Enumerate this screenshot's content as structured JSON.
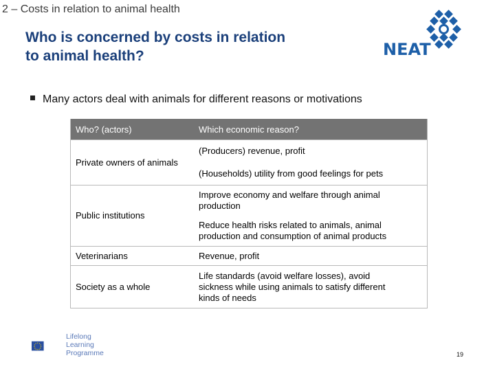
{
  "header": {
    "section_label": "2 – Costs in relation to animal health",
    "title_line1": "Who is concerned by costs in relation",
    "title_line2": "to animal health?"
  },
  "logo": {
    "text": "NEAT",
    "color": "#1d5fa8"
  },
  "bullet": "Many actors deal with animals for different reasons or motivations",
  "table": {
    "headers": [
      "Who? (actors)",
      "Which economic reason?"
    ],
    "rows": [
      {
        "actor": "Private owners of animals",
        "reasons": [
          "(Producers) revenue, profit",
          "(Households) utility from good feelings for pets"
        ]
      },
      {
        "actor": "Public institutions",
        "reasons": [
          "Improve economy and welfare through animal production",
          "Reduce health risks related to animals, animal production and consumption of animal products"
        ]
      },
      {
        "actor": "Veterinarians",
        "reasons": [
          "Revenue, profit"
        ]
      },
      {
        "actor": "Society as a whole",
        "reasons": [
          "Life standards (avoid welfare losses), avoid sickness while using animals to satisfy different kinds of needs"
        ]
      }
    ]
  },
  "footer": {
    "programme_line1": "Lifelong",
    "programme_line2": "Learning",
    "programme_line3": "Programme",
    "page_number": "19"
  }
}
